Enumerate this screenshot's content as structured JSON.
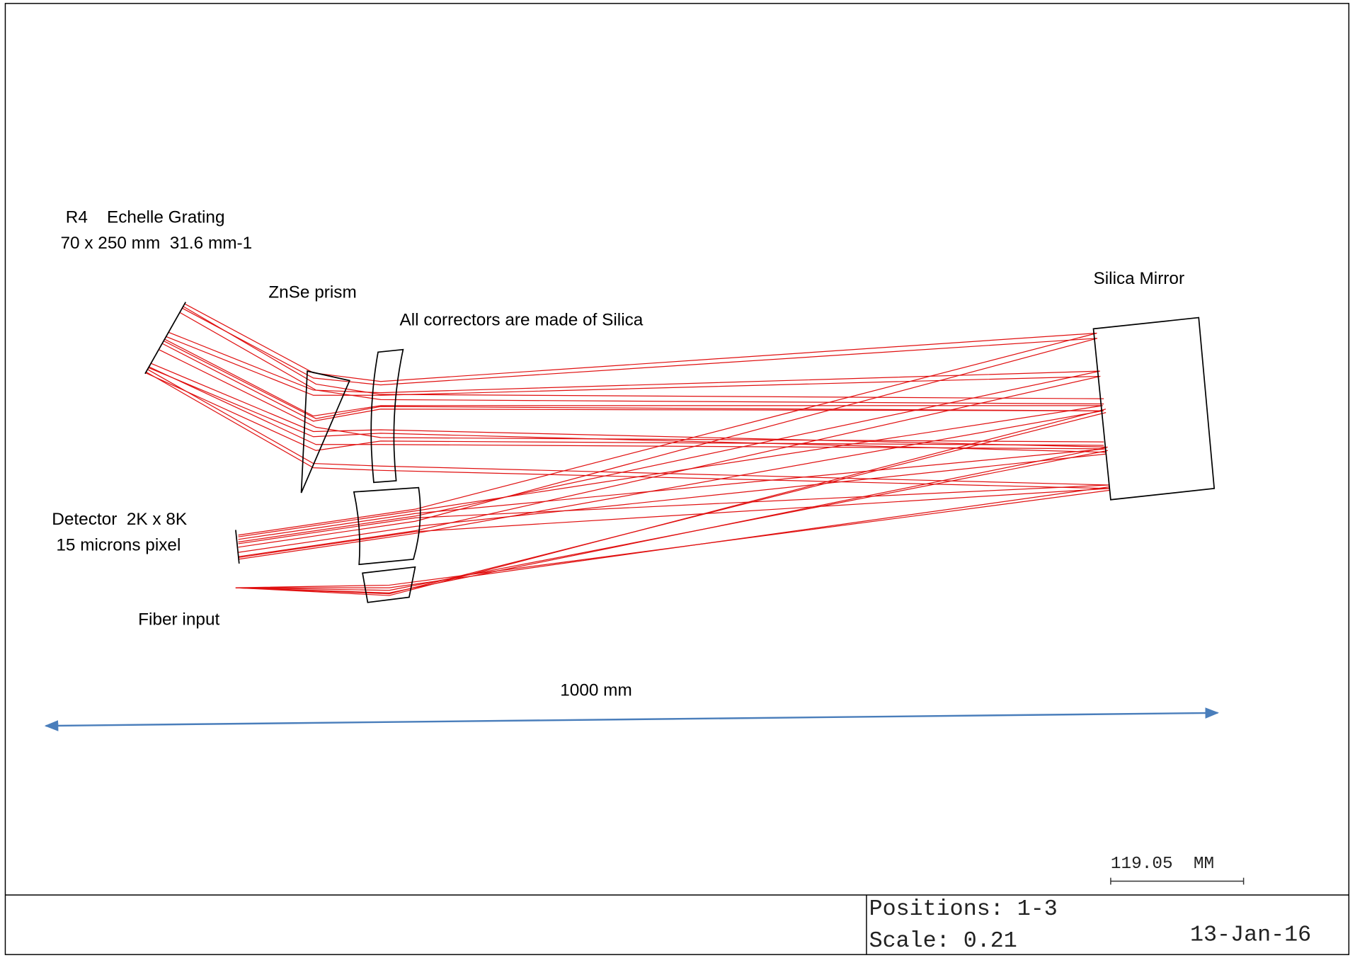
{
  "labels": {
    "grating_line1": "R4    Echelle Grating",
    "grating_line2": "70 x 250 mm  31.6 mm-1",
    "prism": "ZnSe prism",
    "correctors": "All correctors are made of Silica",
    "mirror": "Silica Mirror",
    "detector_line1": "Detector  2K x 8K",
    "detector_line2": "15 microns pixel",
    "fiber": "Fiber input",
    "length": "1000 mm"
  },
  "scale_bar": {
    "label": "119.05  MM"
  },
  "footer": {
    "positions": "Positions: 1-3",
    "scale": "Scale: 0.21",
    "date": "13-Jan-16"
  }
}
